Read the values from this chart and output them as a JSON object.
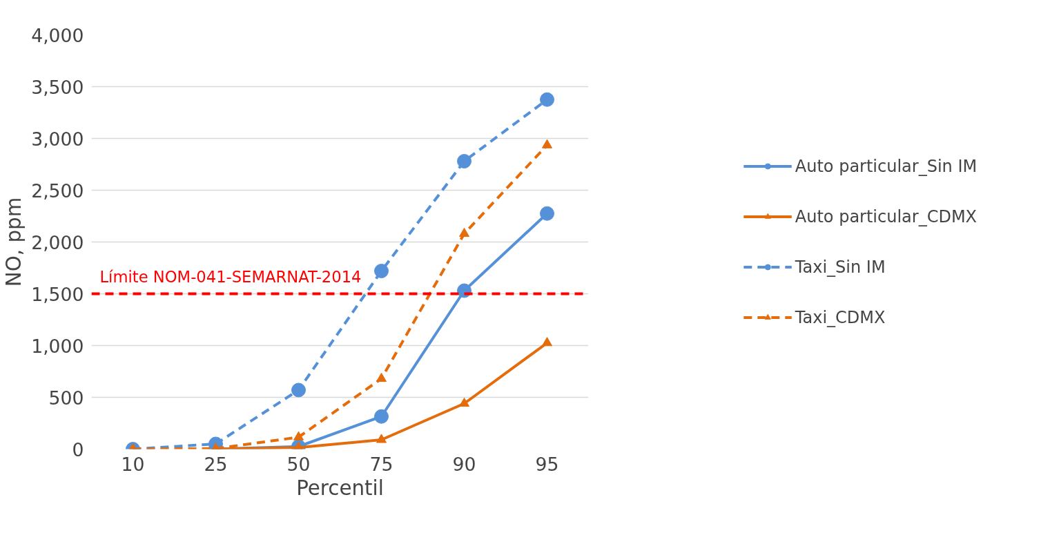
{
  "chart_data": {
    "type": "line",
    "xlabel": "Percentil",
    "ylabel": "NO, ppm",
    "categories": [
      "10",
      "25",
      "50",
      "75",
      "90",
      "95"
    ],
    "ylim": [
      0,
      4000
    ],
    "yticks": [
      {
        "value": 0,
        "label": "0"
      },
      {
        "value": 500,
        "label": "500"
      },
      {
        "value": 1000,
        "label": "1,000"
      },
      {
        "value": 1500,
        "label": "1,500"
      },
      {
        "value": 2000,
        "label": "2,000"
      },
      {
        "value": 2500,
        "label": "2,500"
      },
      {
        "value": 3000,
        "label": "3,000"
      },
      {
        "value": 3500,
        "label": "3,500"
      },
      {
        "value": 4000,
        "label": "4,000"
      }
    ],
    "grid": "y",
    "legend": "right",
    "series": [
      {
        "name": "Auto particular_Sin IM",
        "color": "#5591d9",
        "marker": "circle",
        "line_style": "solid",
        "values": [
          null,
          0,
          25,
          315,
          1530,
          2275
        ]
      },
      {
        "name": "Auto particular_CDMX",
        "color": "#e46c0a",
        "marker": "triangle",
        "line_style": "solid",
        "values": [
          null,
          0,
          15,
          90,
          440,
          1025
        ]
      },
      {
        "name": "Taxi_Sin IM",
        "color": "#5591d9",
        "marker": "circle",
        "line_style": "dashed",
        "values": [
          0,
          50,
          570,
          1720,
          2780,
          3375
        ]
      },
      {
        "name": "Taxi_CDMX",
        "color": "#e46c0a",
        "marker": "triangle",
        "line_style": "dashed",
        "values": [
          0,
          5,
          115,
          680,
          2080,
          2935
        ]
      }
    ],
    "ref_lines": [
      {
        "axis": "y",
        "value": 1500,
        "label": "Límite NOM-041-SEMARNAT-2014",
        "color": "#ff0000",
        "line_style": "dashed"
      }
    ]
  }
}
